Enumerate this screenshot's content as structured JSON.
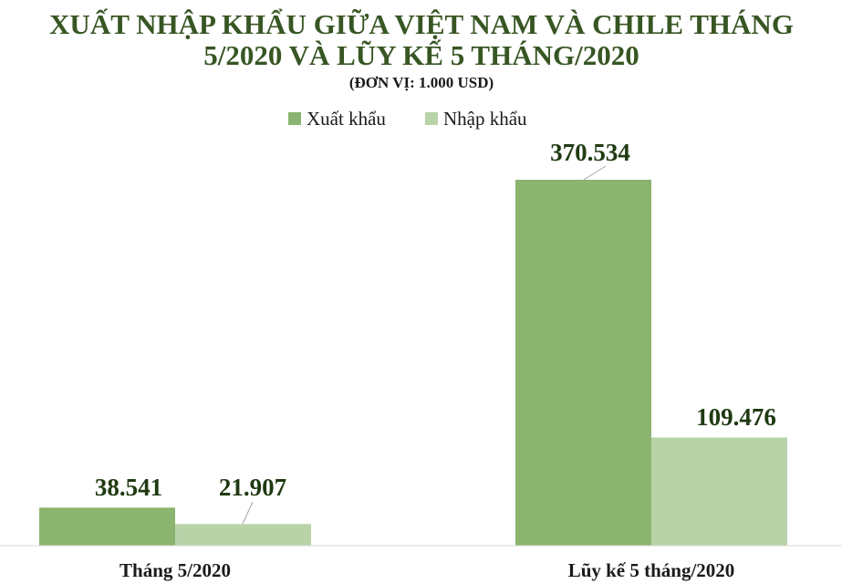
{
  "chart_data": {
    "type": "bar",
    "title_line1": "XUẤT NHẬP KHẨU GIỮA VIỆT NAM VÀ CHILE THÁNG",
    "title_line2": "5/2020 VÀ LŨY KẾ 5 THÁNG/2020",
    "subtitle": "(ĐƠN VỊ: 1.000 USD)",
    "xlabel": "",
    "ylabel": "",
    "legend_position": "top-center",
    "grid": false,
    "categories": [
      "Tháng 5/2020",
      "Lũy kế 5 tháng/2020"
    ],
    "series": [
      {
        "name": "Xuất khẩu",
        "color": "#8ab46f",
        "values": [
          38541,
          370534
        ],
        "labels": [
          "38.541",
          "370.534"
        ]
      },
      {
        "name": "Nhập khẩu",
        "color": "#b9d3a9",
        "values": [
          21907,
          109476
        ],
        "labels": [
          "21.907",
          "109.476"
        ]
      }
    ],
    "ylim": [
      0,
      370534
    ]
  },
  "colors": {
    "title": "#375623",
    "value_label": "#1f3a12",
    "leader_line": "#a6a6a6",
    "axis": "#d9d9d9"
  }
}
